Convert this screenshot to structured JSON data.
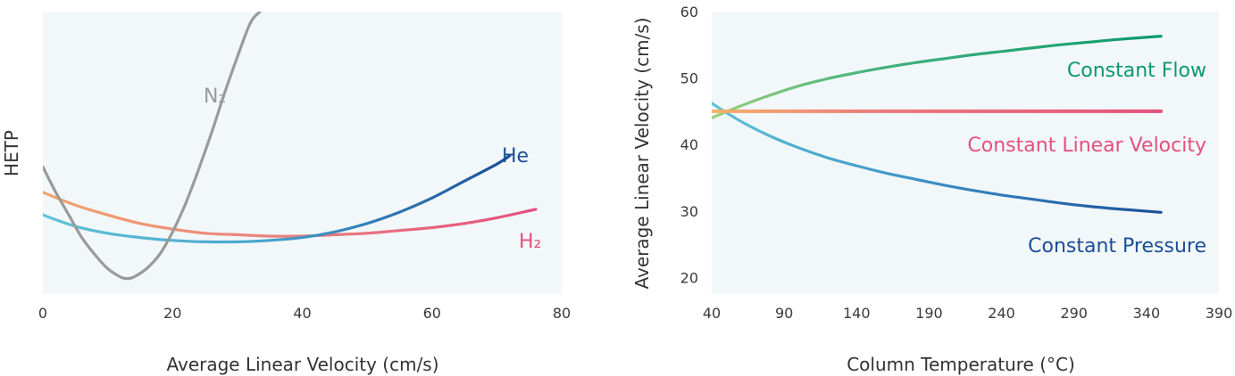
{
  "chart_data": [
    {
      "type": "line",
      "xlabel": "Average Linear Velocity (cm/s)",
      "ylabel": "HETP",
      "xlim": [
        0,
        80
      ],
      "ylim": [
        0,
        1
      ],
      "xticks": [
        "0",
        "20",
        "40",
        "60",
        "80"
      ],
      "grid": false,
      "series": [
        {
          "name": "N₂",
          "color": "#9a9a9a",
          "x": [
            0,
            2,
            4,
            6,
            8,
            10,
            12,
            13,
            14,
            16,
            18,
            20,
            22,
            24,
            26,
            28,
            30,
            32,
            33.5
          ],
          "y": [
            0.45,
            0.36,
            0.28,
            0.2,
            0.14,
            0.09,
            0.06,
            0.055,
            0.06,
            0.09,
            0.14,
            0.22,
            0.32,
            0.44,
            0.57,
            0.71,
            0.84,
            0.96,
            1.0
          ]
        },
        {
          "name": "He",
          "color": "#1a4f99",
          "x": [
            0,
            5,
            10,
            15,
            20,
            25,
            30,
            35,
            40,
            45,
            50,
            55,
            60,
            65,
            70,
            72
          ],
          "y": [
            0.28,
            0.24,
            0.215,
            0.2,
            0.19,
            0.185,
            0.185,
            0.19,
            0.2,
            0.22,
            0.25,
            0.29,
            0.34,
            0.4,
            0.46,
            0.49
          ]
        },
        {
          "name": "H₂",
          "color": "#e4507a",
          "x": [
            0,
            5,
            10,
            15,
            20,
            25,
            30,
            35,
            40,
            45,
            50,
            55,
            60,
            65,
            70,
            75,
            76
          ],
          "y": [
            0.36,
            0.315,
            0.28,
            0.25,
            0.23,
            0.215,
            0.21,
            0.205,
            0.205,
            0.21,
            0.215,
            0.225,
            0.235,
            0.25,
            0.27,
            0.295,
            0.3
          ]
        }
      ],
      "labels": {
        "N2": "N₂",
        "He": "He",
        "H2": "H₂"
      }
    },
    {
      "type": "line",
      "xlabel": "Column Temperature (°C)",
      "ylabel": "Average Linear Velocity (cm/s)",
      "xlim": [
        40,
        390
      ],
      "ylim": [
        20,
        60
      ],
      "xticks": [
        "40",
        "90",
        "140",
        "190",
        "240",
        "290",
        "340",
        "390"
      ],
      "yticks": [
        "20",
        "30",
        "40",
        "50",
        "60"
      ],
      "grid": false,
      "series": [
        {
          "name": "Constant Flow",
          "color": "#0a9a6a",
          "x": [
            40,
            60,
            80,
            100,
            120,
            140,
            160,
            180,
            200,
            220,
            240,
            260,
            280,
            300,
            320,
            350
          ],
          "y": [
            44,
            45.8,
            47.4,
            48.8,
            49.9,
            50.8,
            51.6,
            52.3,
            52.9,
            53.5,
            54.0,
            54.5,
            55.0,
            55.4,
            55.8,
            56.3
          ]
        },
        {
          "name": "Constant Linear Velocity",
          "color": "#e4507a",
          "x": [
            40,
            350
          ],
          "y": [
            45,
            45
          ]
        },
        {
          "name": "Constant Pressure",
          "color": "#1a4f99",
          "x": [
            40,
            60,
            80,
            100,
            120,
            140,
            160,
            180,
            200,
            220,
            240,
            260,
            280,
            300,
            320,
            350
          ],
          "y": [
            46.2,
            43.5,
            41.3,
            39.5,
            38.0,
            36.8,
            35.7,
            34.8,
            33.9,
            33.1,
            32.4,
            31.8,
            31.2,
            30.7,
            30.3,
            29.8
          ]
        }
      ]
    }
  ]
}
